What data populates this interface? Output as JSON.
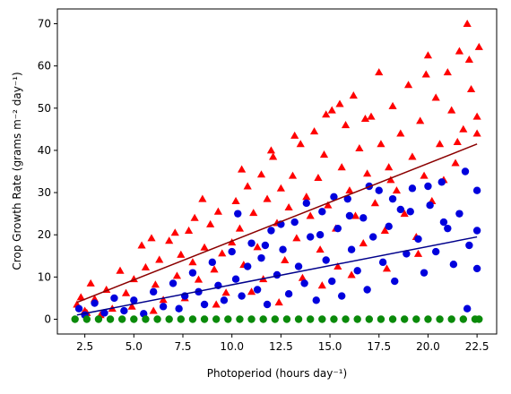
{
  "chart_data": {
    "type": "scatter",
    "title": "",
    "xlabel": "Photoperiod (hours day⁻¹)",
    "ylabel": "Crop Growth Rate (grams m⁻² day⁻¹)",
    "xlim": [
      1.1,
      23.5
    ],
    "ylim": [
      -3.5,
      73.5
    ],
    "xticks": [
      "2.5",
      "5.0",
      "7.5",
      "10.0",
      "12.5",
      "15.0",
      "17.5",
      "20.0",
      "22.5"
    ],
    "yticks": [
      "0",
      "10",
      "20",
      "30",
      "40",
      "50",
      "60",
      "70"
    ],
    "grid": false,
    "legend": "none",
    "series": [
      {
        "marker": "triangle",
        "color": "#ff0000",
        "points": [
          [
            2.1,
            3.5
          ],
          [
            2.3,
            5.2
          ],
          [
            2.5,
            2.0
          ],
          [
            2.8,
            8.5
          ],
          [
            3.0,
            4.8
          ],
          [
            3.6,
            7.0
          ],
          [
            3.9,
            2.5
          ],
          [
            4.3,
            11.5
          ],
          [
            4.6,
            6.2
          ],
          [
            5.0,
            9.5
          ],
          [
            5.4,
            17.5
          ],
          [
            5.6,
            12.3
          ],
          [
            5.9,
            19.2
          ],
          [
            6.1,
            8.2
          ],
          [
            6.3,
            14.1
          ],
          [
            6.5,
            4.6
          ],
          [
            6.8,
            18.6
          ],
          [
            7.1,
            20.5
          ],
          [
            7.2,
            10.3
          ],
          [
            7.4,
            15.3
          ],
          [
            7.8,
            21.0
          ],
          [
            8.0,
            13.5
          ],
          [
            8.1,
            24.0
          ],
          [
            8.3,
            9.4
          ],
          [
            8.6,
            17.0
          ],
          [
            8.9,
            22.5
          ],
          [
            9.1,
            11.8
          ],
          [
            9.3,
            25.5
          ],
          [
            9.5,
            15.6
          ],
          [
            9.7,
            6.3
          ],
          [
            10.0,
            18.2
          ],
          [
            10.2,
            28.0
          ],
          [
            10.4,
            21.5
          ],
          [
            10.6,
            12.9
          ],
          [
            10.8,
            31.5
          ],
          [
            11.1,
            25.2
          ],
          [
            11.3,
            17.1
          ],
          [
            11.5,
            34.3
          ],
          [
            11.6,
            9.5
          ],
          [
            11.8,
            28.5
          ],
          [
            12.1,
            38.5
          ],
          [
            12.3,
            22.8
          ],
          [
            12.5,
            31.0
          ],
          [
            12.7,
            14.0
          ],
          [
            12.9,
            26.5
          ],
          [
            13.1,
            34.0
          ],
          [
            13.3,
            19.2
          ],
          [
            13.5,
            41.5
          ],
          [
            13.6,
            9.8
          ],
          [
            13.8,
            29.0
          ],
          [
            14.0,
            24.5
          ],
          [
            14.2,
            44.5
          ],
          [
            14.4,
            33.5
          ],
          [
            14.5,
            16.5
          ],
          [
            14.7,
            39.0
          ],
          [
            14.9,
            27.0
          ],
          [
            15.1,
            49.5
          ],
          [
            15.3,
            21.5
          ],
          [
            15.4,
            12.5
          ],
          [
            15.6,
            36.0
          ],
          [
            15.8,
            46.0
          ],
          [
            16.0,
            30.5
          ],
          [
            16.2,
            53.0
          ],
          [
            16.3,
            24.5
          ],
          [
            16.5,
            40.5
          ],
          [
            16.7,
            18.0
          ],
          [
            16.9,
            34.5
          ],
          [
            17.1,
            48.0
          ],
          [
            17.3,
            27.5
          ],
          [
            17.5,
            58.5
          ],
          [
            17.6,
            41.5
          ],
          [
            17.8,
            21.0
          ],
          [
            18.0,
            36.0
          ],
          [
            18.2,
            50.5
          ],
          [
            18.4,
            30.5
          ],
          [
            18.6,
            44.0
          ],
          [
            18.8,
            25.0
          ],
          [
            19.0,
            55.5
          ],
          [
            19.2,
            38.5
          ],
          [
            19.4,
            19.5
          ],
          [
            19.6,
            47.0
          ],
          [
            19.8,
            34.0
          ],
          [
            20.0,
            62.5
          ],
          [
            20.2,
            28.0
          ],
          [
            20.4,
            52.5
          ],
          [
            20.6,
            41.5
          ],
          [
            20.8,
            33.0
          ],
          [
            21.0,
            58.5
          ],
          [
            21.2,
            49.5
          ],
          [
            21.4,
            37.0
          ],
          [
            21.6,
            63.5
          ],
          [
            21.8,
            45.0
          ],
          [
            22.0,
            70.0
          ],
          [
            22.1,
            61.5
          ],
          [
            22.2,
            54.5
          ],
          [
            22.5,
            48.0
          ],
          [
            22.5,
            44.0
          ],
          [
            22.6,
            64.5
          ],
          [
            2.6,
            1.5
          ],
          [
            3.3,
            1.0
          ],
          [
            4.9,
            3.0
          ],
          [
            6.0,
            2.0
          ],
          [
            7.6,
            5.0
          ],
          [
            9.2,
            3.5
          ],
          [
            11.0,
            6.5
          ],
          [
            12.4,
            4.0
          ],
          [
            14.6,
            8.0
          ],
          [
            16.1,
            10.5
          ],
          [
            17.9,
            12.0
          ],
          [
            19.5,
            15.5
          ],
          [
            8.5,
            28.5
          ],
          [
            10.5,
            35.5
          ],
          [
            12.0,
            40.0
          ],
          [
            13.2,
            43.5
          ],
          [
            14.8,
            48.5
          ],
          [
            15.5,
            51.0
          ],
          [
            16.8,
            47.5
          ],
          [
            18.1,
            33.0
          ],
          [
            19.9,
            58.0
          ],
          [
            21.5,
            42.0
          ]
        ]
      },
      {
        "marker": "circle",
        "color": "#0000dd",
        "points": [
          [
            2.2,
            2.5
          ],
          [
            2.5,
            1.0
          ],
          [
            3.0,
            3.8
          ],
          [
            3.5,
            1.5
          ],
          [
            4.0,
            5.0
          ],
          [
            4.5,
            2.0
          ],
          [
            5.0,
            4.5
          ],
          [
            5.5,
            1.3
          ],
          [
            6.0,
            6.5
          ],
          [
            6.5,
            3.0
          ],
          [
            7.0,
            8.5
          ],
          [
            7.3,
            2.5
          ],
          [
            7.6,
            5.5
          ],
          [
            8.0,
            11.0
          ],
          [
            8.3,
            6.5
          ],
          [
            8.6,
            3.5
          ],
          [
            9.0,
            13.5
          ],
          [
            9.3,
            8.0
          ],
          [
            9.6,
            4.5
          ],
          [
            10.0,
            16.0
          ],
          [
            10.2,
            9.5
          ],
          [
            10.5,
            5.5
          ],
          [
            10.8,
            12.5
          ],
          [
            11.0,
            18.0
          ],
          [
            11.3,
            7.0
          ],
          [
            11.5,
            14.5
          ],
          [
            11.8,
            3.5
          ],
          [
            12.0,
            21.0
          ],
          [
            12.3,
            10.5
          ],
          [
            12.6,
            16.5
          ],
          [
            12.9,
            6.0
          ],
          [
            13.2,
            23.0
          ],
          [
            13.4,
            12.5
          ],
          [
            13.7,
            8.5
          ],
          [
            14.0,
            19.5
          ],
          [
            14.3,
            4.5
          ],
          [
            14.6,
            25.5
          ],
          [
            14.8,
            14.0
          ],
          [
            15.1,
            9.0
          ],
          [
            15.4,
            21.5
          ],
          [
            15.6,
            5.5
          ],
          [
            15.9,
            28.5
          ],
          [
            16.1,
            16.5
          ],
          [
            16.4,
            11.5
          ],
          [
            16.7,
            24.0
          ],
          [
            16.9,
            7.0
          ],
          [
            17.2,
            19.5
          ],
          [
            17.5,
            30.5
          ],
          [
            17.7,
            13.5
          ],
          [
            18.0,
            22.0
          ],
          [
            18.3,
            9.0
          ],
          [
            18.6,
            26.0
          ],
          [
            18.9,
            15.5
          ],
          [
            19.2,
            31.0
          ],
          [
            19.5,
            19.0
          ],
          [
            19.8,
            11.0
          ],
          [
            20.1,
            27.0
          ],
          [
            20.4,
            16.0
          ],
          [
            20.7,
            32.5
          ],
          [
            21.0,
            21.5
          ],
          [
            21.3,
            13.0
          ],
          [
            21.6,
            25.0
          ],
          [
            21.9,
            35.0
          ],
          [
            22.0,
            2.5
          ],
          [
            22.1,
            17.5
          ],
          [
            22.5,
            30.5
          ],
          [
            22.5,
            21.0
          ],
          [
            22.5,
            12.0
          ],
          [
            10.3,
            25.0
          ],
          [
            11.7,
            17.5
          ],
          [
            12.5,
            22.5
          ],
          [
            13.8,
            27.5
          ],
          [
            14.5,
            20.0
          ],
          [
            15.2,
            29.0
          ],
          [
            16.0,
            24.5
          ],
          [
            17.0,
            31.5
          ],
          [
            18.2,
            28.5
          ],
          [
            19.1,
            25.5
          ],
          [
            20.0,
            31.5
          ],
          [
            20.8,
            23.0
          ]
        ]
      },
      {
        "marker": "circle",
        "color": "#0a8a0a",
        "points": [
          [
            2.0,
            0
          ],
          [
            2.6,
            0
          ],
          [
            3.2,
            0
          ],
          [
            3.8,
            0
          ],
          [
            4.4,
            0
          ],
          [
            5.0,
            0
          ],
          [
            5.6,
            0
          ],
          [
            6.2,
            0
          ],
          [
            6.8,
            0
          ],
          [
            7.4,
            0
          ],
          [
            8.0,
            0
          ],
          [
            8.6,
            0
          ],
          [
            9.2,
            0
          ],
          [
            9.8,
            0
          ],
          [
            10.4,
            0
          ],
          [
            11.0,
            0
          ],
          [
            11.6,
            0
          ],
          [
            12.2,
            0
          ],
          [
            12.8,
            0
          ],
          [
            13.4,
            0
          ],
          [
            14.0,
            0
          ],
          [
            14.6,
            0
          ],
          [
            15.2,
            0
          ],
          [
            15.8,
            0
          ],
          [
            16.4,
            0
          ],
          [
            17.0,
            0
          ],
          [
            17.6,
            0
          ],
          [
            18.2,
            0
          ],
          [
            18.8,
            0
          ],
          [
            19.4,
            0
          ],
          [
            20.0,
            0
          ],
          [
            20.6,
            0
          ],
          [
            21.2,
            0
          ],
          [
            21.8,
            0
          ],
          [
            22.4,
            0
          ],
          [
            22.6,
            0
          ]
        ]
      }
    ],
    "fit_lines": [
      {
        "color": "#8b0000",
        "x": [
          2.1,
          22.5
        ],
        "y": [
          4.0,
          41.5
        ]
      },
      {
        "color": "#00008b",
        "x": [
          2.1,
          22.5
        ],
        "y": [
          1.0,
          19.5
        ]
      }
    ]
  }
}
